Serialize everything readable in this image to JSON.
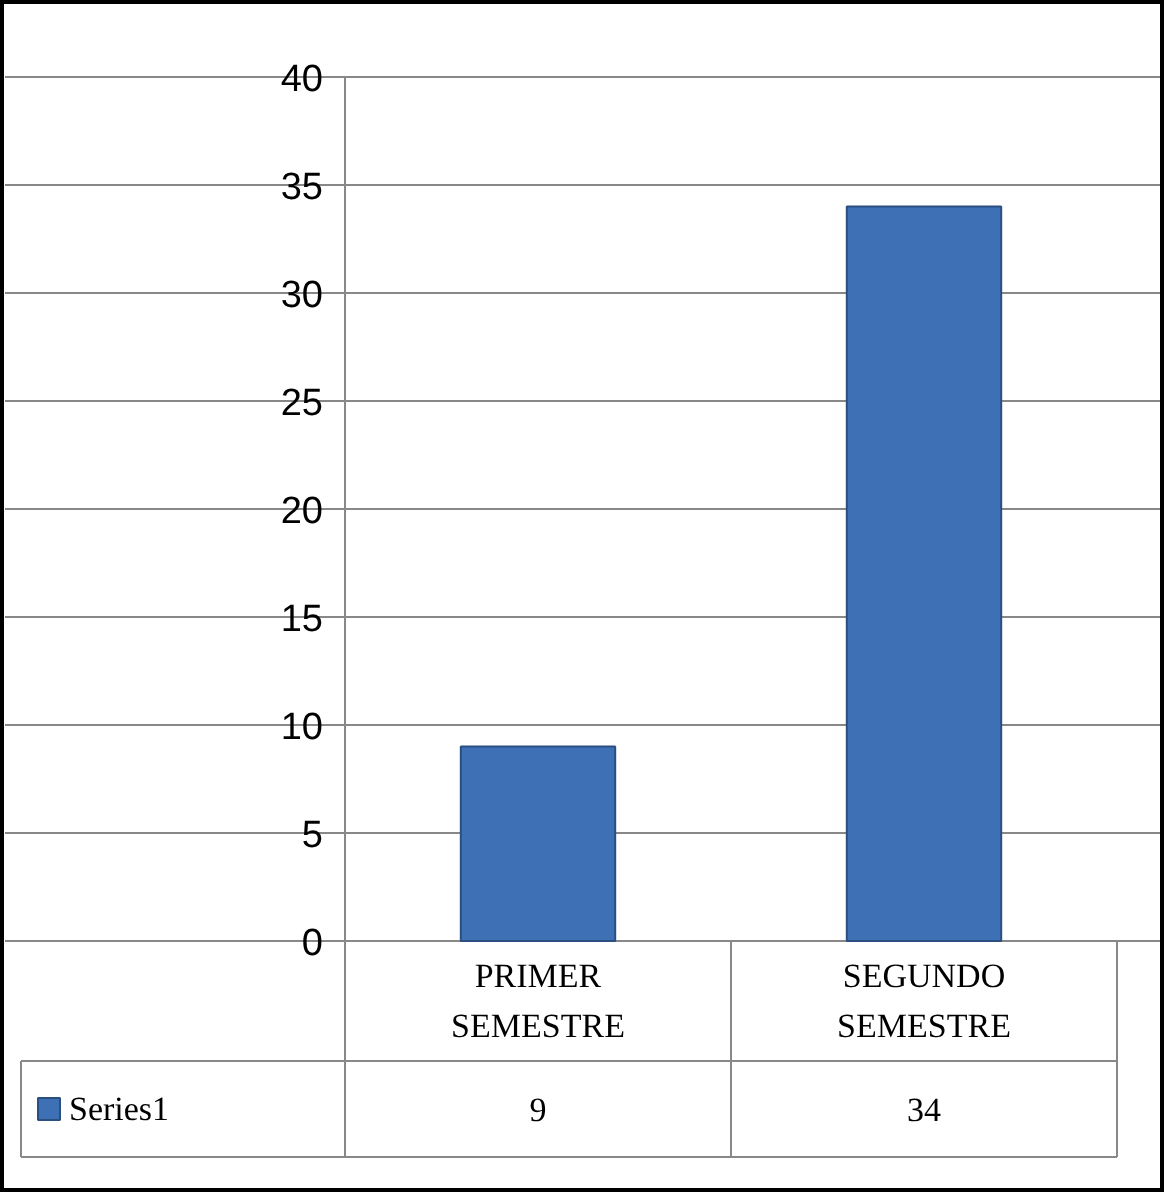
{
  "chart_data": {
    "type": "bar",
    "categories": [
      "PRIMER SEMESTRE",
      "SEGUNDO SEMESTRE"
    ],
    "series": [
      {
        "name": "Series1",
        "color": "#3d70b5",
        "values": [
          9,
          34
        ]
      }
    ],
    "ylim": [
      0,
      40
    ],
    "yticks": [
      0,
      5,
      10,
      15,
      20,
      25,
      30,
      35,
      40
    ],
    "grid": "y",
    "legend": "bottom",
    "data_labels": true
  }
}
